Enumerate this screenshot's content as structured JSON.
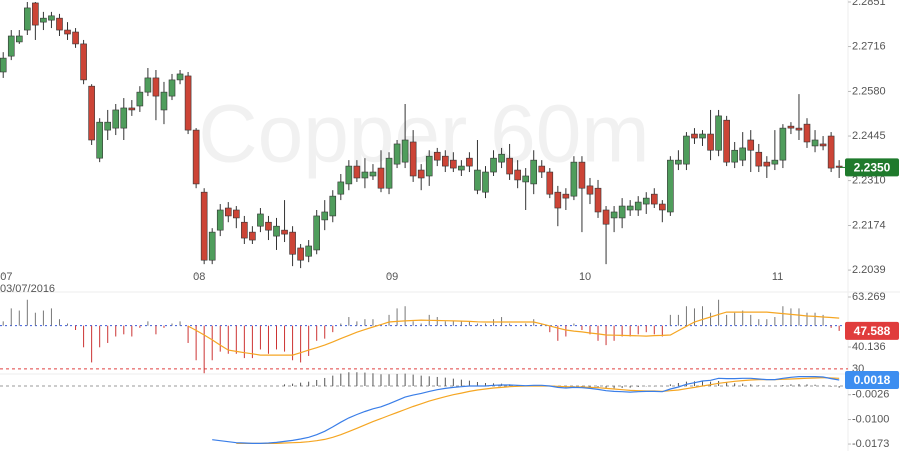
{
  "chart_data": [
    {
      "type": "candlestick",
      "watermark": "Copper 60m",
      "start_date": "03/07/2016",
      "xlim": [
        -0.4,
        105.1
      ],
      "xticks": [
        {
          "value": 0,
          "label": "07"
        },
        {
          "value": 24,
          "label": "08"
        },
        {
          "value": 48,
          "label": "09"
        },
        {
          "value": 72,
          "label": "10"
        },
        {
          "value": 96,
          "label": "11"
        }
      ],
      "ylim": [
        2.2009,
        2.2857
      ],
      "yticks": [
        2.2851,
        2.2716,
        {
          "value": 2.258,
          "label": "2.2580"
        },
        2.2445,
        {
          "value": 2.231,
          "label": "2.2310"
        },
        2.2174,
        2.2039
      ],
      "up_color": "#4f9d5c",
      "down_color": "#cc4436",
      "last_label": "2.2350",
      "last_color": "#1f7a2c",
      "open": [
        2.2639,
        2.2687,
        2.273,
        2.2766,
        2.2848,
        2.279,
        2.2796,
        2.2802,
        2.2766,
        2.276,
        2.2724,
        2.2596,
        2.2378,
        2.2463,
        2.2469,
        2.2469,
        2.253,
        2.2536,
        2.2578,
        2.2621,
        2.2524,
        2.2566,
        2.2615,
        2.2627,
        2.2463,
        2.2275,
        2.2069,
        2.216,
        2.2227,
        2.2221,
        2.2184,
        2.2154,
        2.2172,
        2.2184,
        2.2142,
        2.216,
        2.2154,
        2.2106,
        2.2081,
        2.21,
        2.2191,
        2.2203,
        2.2269,
        2.23,
        2.2354,
        2.2318,
        2.2324,
        2.2348,
        2.2287,
        2.236,
        2.2366,
        2.2427,
        2.2342,
        2.2324,
        2.2396,
        2.2384,
        2.2372,
        2.2342,
        2.2378,
        2.2281,
        2.2275,
        2.2336,
        2.2366,
        2.2378,
        2.2342,
        2.2306,
        2.23,
        2.2354,
        2.2336,
        2.2275,
        2.2269,
        2.2263,
        2.2366,
        2.2294,
        2.2287,
        2.2221,
        2.2197,
        2.2197,
        2.2221,
        2.2221,
        2.2239,
        2.2269,
        2.2239,
        2.2215,
        2.236,
        2.236,
        2.2451,
        2.2439,
        2.2451,
        2.2402,
        2.2493,
        2.2366,
        2.2372,
        2.2433,
        2.2396,
        2.2366,
        2.236,
        2.2372,
        2.2475,
        2.2469,
        2.2481,
        2.2415,
        2.2421,
        2.2445,
        2.2354
      ],
      "high": [
        2.2699,
        2.2766,
        2.2766,
        2.2851,
        2.2851,
        2.2821,
        2.2821,
        2.2815,
        2.279,
        2.2772,
        2.2736,
        2.2602,
        2.2499,
        2.2524,
        2.2542,
        2.256,
        2.2554,
        2.2596,
        2.2651,
        2.2645,
        2.2609,
        2.2633,
        2.2645,
        2.2639,
        2.2469,
        2.2287,
        2.2166,
        2.2239,
        2.2245,
        2.2233,
        2.2203,
        2.2172,
        2.2227,
        2.2203,
        2.2197,
        2.2251,
        2.2172,
        2.2118,
        2.213,
        2.2221,
        2.2251,
        2.2281,
        2.233,
        2.2372,
        2.2372,
        2.2378,
        2.236,
        2.2402,
        2.2396,
        2.2433,
        2.2542,
        2.2463,
        2.236,
        2.2402,
        2.2409,
        2.2402,
        2.2396,
        2.2372,
        2.2396,
        2.2433,
        2.2354,
        2.2402,
        2.2409,
        2.2421,
        2.2372,
        2.2348,
        2.2402,
        2.2372,
        2.2348,
        2.2294,
        2.2287,
        2.2384,
        2.2384,
        2.2318,
        2.2312,
        2.2233,
        2.2233,
        2.2257,
        2.2251,
        2.2263,
        2.2275,
        2.2287,
        2.2251,
        2.2384,
        2.2402,
        2.2457,
        2.2469,
        2.2463,
        2.2524,
        2.2524,
        2.2506,
        2.2427,
        2.2457,
        2.2463,
        2.2421,
        2.2384,
        2.2463,
        2.2481,
        2.2487,
        2.2572,
        2.2499,
        2.2463,
        2.2445,
        2.2457,
        2.2372
      ],
      "low": [
        2.2621,
        2.2675,
        2.2724,
        2.2751,
        2.2736,
        2.2766,
        2.2772,
        2.2748,
        2.2736,
        2.2712,
        2.2602,
        2.2418,
        2.2366,
        2.2433,
        2.2448,
        2.2433,
        2.2506,
        2.2518,
        2.2566,
        2.2493,
        2.2481,
        2.2554,
        2.2602,
        2.2451,
        2.2287,
        2.2057,
        2.2057,
        2.2142,
        2.2184,
        2.2166,
        2.2118,
        2.2118,
        2.2154,
        2.213,
        2.21,
        2.2124,
        2.2051,
        2.2045,
        2.2063,
        2.2087,
        2.216,
        2.2184,
        2.2251,
        2.2281,
        2.2306,
        2.2287,
        2.2312,
        2.2275,
        2.2269,
        2.2348,
        2.2348,
        2.2306,
        2.2281,
        2.2294,
        2.2354,
        2.2336,
        2.2336,
        2.2324,
        2.2336,
        2.2269,
        2.2257,
        2.2324,
        2.2348,
        2.2312,
        2.2287,
        2.2221,
        2.2269,
        2.2318,
        2.2257,
        2.2172,
        2.2221,
        2.2251,
        2.2154,
        2.2239,
        2.2197,
        2.2057,
        2.2154,
        2.2166,
        2.2203,
        2.2203,
        2.2209,
        2.2227,
        2.2184,
        2.2203,
        2.2342,
        2.2342,
        2.2421,
        2.2415,
        2.2372,
        2.2384,
        2.2354,
        2.2348,
        2.2354,
        2.2336,
        2.2336,
        2.2318,
        2.2342,
        2.2348,
        2.2451,
        2.2433,
        2.2409,
        2.2396,
        2.2402,
        2.2336,
        2.2318
      ],
      "close": [
        2.2681,
        2.2748,
        2.2748,
        2.2833,
        2.2781,
        2.2802,
        2.2809,
        2.2766,
        2.2754,
        2.2724,
        2.2615,
        2.2433,
        2.2487,
        2.2487,
        2.2524,
        2.253,
        2.2524,
        2.2578,
        2.2621,
        2.2566,
        2.2578,
        2.2615,
        2.2633,
        2.2463,
        2.23,
        2.2069,
        2.2154,
        2.2221,
        2.2203,
        2.2197,
        2.2136,
        2.213,
        2.2209,
        2.216,
        2.2172,
        2.2148,
        2.2087,
        2.2069,
        2.2112,
        2.2203,
        2.2215,
        2.2263,
        2.2306,
        2.2354,
        2.2318,
        2.2336,
        2.2336,
        2.2287,
        2.2378,
        2.2421,
        2.2433,
        2.2324,
        2.2318,
        2.2384,
        2.2372,
        2.2354,
        2.2348,
        2.2354,
        2.2354,
        2.2342,
        2.2336,
        2.2378,
        2.239,
        2.233,
        2.2312,
        2.2324,
        2.2372,
        2.2336,
        2.2269,
        2.2227,
        2.2257,
        2.2366,
        2.2287,
        2.2269,
        2.2215,
        2.2178,
        2.2215,
        2.2233,
        2.2233,
        2.2245,
        2.2257,
        2.2239,
        2.2221,
        2.2372,
        2.2372,
        2.2445,
        2.2439,
        2.2451,
        2.2402,
        2.2506,
        2.2366,
        2.2402,
        2.2409,
        2.2402,
        2.2354,
        2.2354,
        2.2372,
        2.2469,
        2.2469,
        2.2463,
        2.2427,
        2.2433,
        2.2415,
        2.2348,
        2.235
      ]
    },
    {
      "type": "oscillator",
      "ylim": [
        28.57,
        65.58
      ],
      "yticks": [
        63.269,
        40.136
      ],
      "oversold_level": 30,
      "baseline": 50,
      "up_color": "#777777",
      "down_color": "#cc3333",
      "baseline_color": "#3b5bdb",
      "level_color": "#e04040",
      "badge_color": "#e03c3c",
      "series": [
        {
          "name": "RSI",
          "color": "#cc3333",
          "values": [
            52,
            58,
            57,
            62,
            56,
            57,
            58,
            53,
            51,
            48,
            40,
            33,
            40,
            42,
            45,
            46,
            45,
            49,
            52,
            46,
            49,
            51,
            52,
            42,
            34,
            28,
            34,
            38,
            37,
            37,
            35,
            35,
            39,
            37,
            39,
            38,
            34,
            33,
            36,
            43,
            44,
            47,
            51,
            54,
            52,
            53,
            53,
            50,
            55,
            58,
            59,
            52,
            51,
            55,
            54,
            52,
            52,
            52,
            52,
            51,
            51,
            53,
            54,
            51,
            50,
            51,
            53,
            51,
            47,
            43,
            45,
            51,
            48,
            46,
            43,
            41,
            43,
            45,
            45,
            46,
            47,
            46,
            45,
            55,
            55,
            59,
            58,
            59,
            56,
            62,
            55,
            56,
            57,
            55,
            53,
            53,
            54,
            59,
            58,
            58,
            56,
            56,
            55,
            49,
            47.588
          ]
        },
        {
          "name": "RSI MA",
          "color": "#f5a623",
          "values": [
            null,
            null,
            null,
            null,
            null,
            null,
            null,
            null,
            null,
            null,
            null,
            null,
            null,
            null,
            null,
            null,
            null,
            null,
            null,
            null,
            null,
            null,
            null,
            49.8,
            47.8,
            45.7,
            43.4,
            41.0,
            38.7,
            38.1,
            37.5,
            37.0,
            36.4,
            36.4,
            36.4,
            36.4,
            36.4,
            37.5,
            38.7,
            39.8,
            41.0,
            42.5,
            44.0,
            45.5,
            47.0,
            48.2,
            49.4,
            50.5,
            51.7,
            52.0,
            52.2,
            52.4,
            52.6,
            52.5,
            52.4,
            52.3,
            52.2,
            52.1,
            52.0,
            51.8,
            51.7,
            51.7,
            51.7,
            51.7,
            51.7,
            51.7,
            51.7,
            50.8,
            49.9,
            48.9,
            48.0,
            47.5,
            47.1,
            46.6,
            46.2,
            45.7,
            45.6,
            45.5,
            45.4,
            45.3,
            45.2,
            45.4,
            45.5,
            45.7,
            47.7,
            49.7,
            51.7,
            52.9,
            54.0,
            55.2,
            56.3,
            56.3,
            56.3,
            56.3,
            56.3,
            56.3,
            55.9,
            55.6,
            55.2,
            54.9,
            54.5,
            54.3,
            54.0,
            53.8,
            53.5
          ]
        }
      ]
    },
    {
      "type": "macd",
      "ylim": [
        -0.01937,
        0.00358
      ],
      "yticks": [
        -0.0026,
        {
          "value": -0.01,
          "label": "-0.0100"
        },
        -0.0173
      ],
      "zero_line": true,
      "zero_color": "#999999",
      "hist_color": "#555555",
      "badge_color": "#3d8ef0",
      "series": [
        {
          "name": "MACD",
          "color": "#3a7ee8",
          "values": [
            null,
            null,
            null,
            null,
            null,
            null,
            null,
            null,
            null,
            null,
            null,
            null,
            null,
            null,
            null,
            null,
            null,
            null,
            null,
            null,
            null,
            null,
            null,
            null,
            null,
            null,
            -0.016,
            -0.0163,
            -0.0166,
            -0.0169,
            -0.017,
            -0.0171,
            -0.0171,
            -0.017,
            -0.0168,
            -0.0165,
            -0.0162,
            -0.0158,
            -0.0153,
            -0.0145,
            -0.0135,
            -0.0122,
            -0.0108,
            -0.0095,
            -0.0085,
            -0.0076,
            -0.0068,
            -0.0062,
            -0.0053,
            -0.0043,
            -0.0033,
            -0.0027,
            -0.0022,
            -0.0016,
            -0.0011,
            -0.0007,
            -0.0004,
            -0.0002,
            0,
            0,
            0,
            0.0002,
            0.0003,
            0.0003,
            0.0002,
            0.0001,
            0.0002,
            0.0002,
            0,
            -0.0004,
            -0.0006,
            -0.0004,
            -0.0005,
            -0.0007,
            -0.001,
            -0.0014,
            -0.0016,
            -0.0017,
            -0.0018,
            -0.0017,
            -0.0016,
            -0.0016,
            -0.0017,
            -0.0009,
            -0.0003,
            0.0005,
            0.001,
            0.0015,
            0.0017,
            0.0023,
            0.0022,
            0.0022,
            0.0023,
            0.0023,
            0.0021,
            0.0019,
            0.0019,
            0.0023,
            0.0026,
            0.0028,
            0.0028,
            0.0028,
            0.0027,
            0.0022,
            0.0018
          ]
        },
        {
          "name": "Signal",
          "color": "#f5a623",
          "values": [
            null,
            null,
            null,
            null,
            null,
            null,
            null,
            null,
            null,
            null,
            null,
            null,
            null,
            null,
            null,
            null,
            null,
            null,
            null,
            null,
            null,
            null,
            null,
            null,
            null,
            null,
            null,
            null,
            null,
            -0.0171,
            -0.0171,
            -0.0171,
            -0.0171,
            -0.0171,
            -0.0171,
            -0.017,
            -0.0169,
            -0.0168,
            -0.0166,
            -0.0163,
            -0.0159,
            -0.0153,
            -0.0145,
            -0.0136,
            -0.0126,
            -0.0116,
            -0.0106,
            -0.0097,
            -0.0088,
            -0.0079,
            -0.007,
            -0.0061,
            -0.0053,
            -0.0045,
            -0.0038,
            -0.0032,
            -0.0026,
            -0.0021,
            -0.0016,
            -0.0012,
            -0.0009,
            -0.0006,
            -0.0004,
            -0.0002,
            -0.0001,
            0,
            0,
            0,
            0,
            -0.0001,
            -0.0002,
            -0.0003,
            -0.0003,
            -0.0004,
            -0.0005,
            -0.0007,
            -0.0009,
            -0.0011,
            -0.0013,
            -0.0014,
            -0.0015,
            -0.0015,
            -0.0016,
            -0.0014,
            -0.0012,
            -0.0008,
            -0.0004,
            0,
            0.0004,
            0.0008,
            0.0011,
            0.0014,
            0.0016,
            0.0018,
            0.0019,
            0.0019,
            0.0019,
            0.002,
            0.0021,
            0.0022,
            0.0023,
            0.0024,
            0.0025,
            0.0024,
            0.0023
          ]
        },
        {
          "name": "Histogram",
          "values": [
            null,
            null,
            null,
            null,
            null,
            null,
            null,
            null,
            null,
            null,
            null,
            null,
            null,
            null,
            null,
            null,
            null,
            null,
            null,
            null,
            null,
            null,
            null,
            null,
            null,
            null,
            null,
            null,
            null,
            null,
            null,
            null,
            null,
            null,
            null,
            0.0005,
            0.0007,
            0.001,
            0.0013,
            0.0018,
            0.0024,
            0.0031,
            0.0037,
            0.0041,
            0.0041,
            0.004,
            0.0038,
            0.0035,
            0.0035,
            0.0036,
            0.0037,
            0.0034,
            0.0031,
            0.0029,
            0.0027,
            0.0025,
            0.0022,
            0.0019,
            0.0016,
            0.0012,
            0.0009,
            0.0008,
            0.0007,
            0.0005,
            0.0003,
            0.0001,
            0.0002,
            0.0002,
            0,
            -0.0003,
            -0.0004,
            -0.0001,
            -0.0002,
            -0.0003,
            -0.0005,
            -0.0007,
            -0.0007,
            -0.0006,
            -0.0005,
            -0.0003,
            -0.0001,
            -0.0001,
            -0.0001,
            0.0005,
            0.0009,
            0.0013,
            0.0014,
            0.0015,
            0.0013,
            0.0015,
            0.0011,
            0.0008,
            0.0007,
            0.0005,
            0.0002,
            0,
            0,
            0.0003,
            0.0005,
            0.0006,
            0.0005,
            0.0004,
            0.0002,
            -0.0002,
            -0.0005
          ]
        }
      ]
    }
  ]
}
